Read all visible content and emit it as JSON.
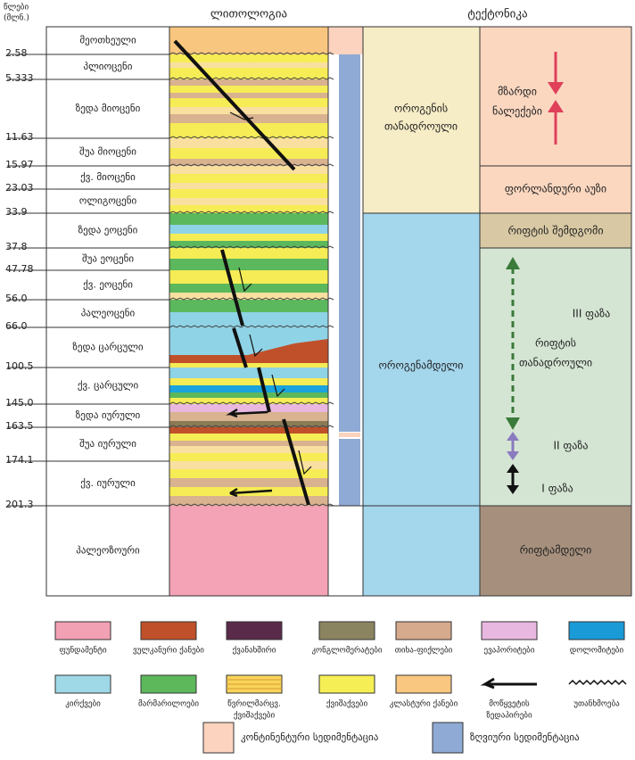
{
  "header": {
    "age_label": [
      "წლები",
      "(მლნ.)"
    ],
    "lithology": "ლითოლოგია",
    "tectonics": "ტექტონიკა"
  },
  "ages": [
    "2.58",
    "5.333",
    "11.63",
    "15.97",
    "23.03",
    "33.9",
    "37.8",
    "47.78",
    "56.0",
    "66.0",
    "100.5",
    "145.0",
    "163.5",
    "174.1",
    "201.3"
  ],
  "stages": [
    "მეოთხეული",
    "პლიოცენი",
    "ზედა მიოცენი",
    "შუა მიოცენი",
    "ქვ. მიოცენი",
    "ოლიგოცენი",
    "ზედა ეოცენი",
    "შუა ეოცენი",
    "ქვ. ეოცენი",
    "პალეოცენი",
    "ზედა ცარცული",
    "ქვ. ცარცული",
    "ზედა იურული",
    "შუა იურული",
    "ქვ. იურული",
    "პალეოზოური"
  ],
  "tectonics": {
    "orogenic_sync": [
      "ოროგენის",
      "თანადროული"
    ],
    "pre_orogenic": "ოროგენამდელი",
    "growth_strata": [
      "მზარდი",
      "ნალექები"
    ],
    "foreland_basin": "ფორლანდური აუზი",
    "post_rift": "რიფტის შემდგომი",
    "phase_3": "III ფაზა",
    "syn_rift": [
      "რიფტის",
      "თანადროული"
    ],
    "phase_2": "II ფაზა",
    "phase_1": "I ფაზა",
    "pre_rift": "რიფტამდელი"
  },
  "legend": [
    [
      "ფუნდამენტი"
    ],
    [
      "ვულკანური ქანები"
    ],
    [
      "ქვანახშირი"
    ],
    [
      "კონგლომერატები"
    ],
    [
      "თიხა-ფიქლები"
    ],
    [
      "ევაპორიტები"
    ],
    [
      "დოლომიტები"
    ],
    [
      "კირქვები"
    ],
    [
      "მარმარილოები"
    ],
    [
      "წვრილმარცვ.",
      "ქვიშაქვები"
    ],
    [
      "ქვიშაქვები"
    ],
    [
      "კლასტური ქანები"
    ],
    [
      "მოწყვეტის",
      "ზედაპირები"
    ],
    [
      "უთანხმოება"
    ],
    [
      "კონტინენტური სედიმენტაცია"
    ],
    [
      "ზღვიური სედიმენტაცია"
    ]
  ]
}
